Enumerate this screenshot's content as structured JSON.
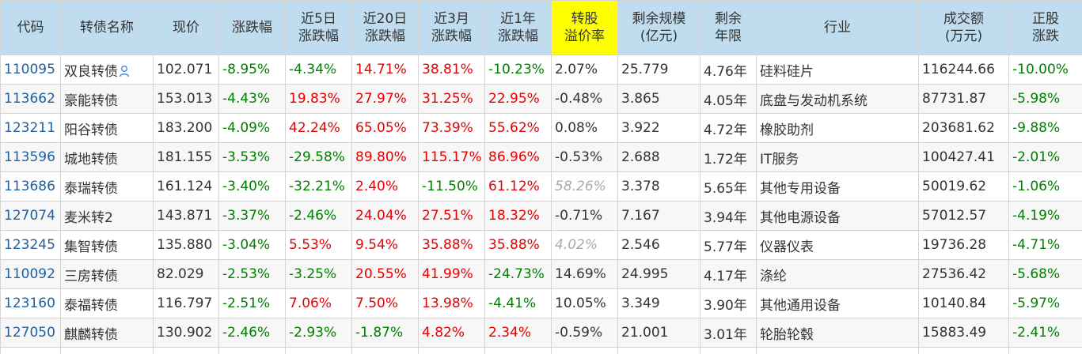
{
  "headers": [
    {
      "l1": "代码",
      "l2": ""
    },
    {
      "l1": "转债名称",
      "l2": ""
    },
    {
      "l1": "现价",
      "l2": ""
    },
    {
      "l1": "涨跌幅",
      "l2": ""
    },
    {
      "l1": "近5日",
      "l2": "涨跌幅"
    },
    {
      "l1": "近20日",
      "l2": "涨跌幅"
    },
    {
      "l1": "近3月",
      "l2": "涨跌幅"
    },
    {
      "l1": "近1年",
      "l2": "涨跌幅"
    },
    {
      "l1": "转股",
      "l2": "溢价率"
    },
    {
      "l1": "剩余规模",
      "l2": "(亿元)"
    },
    {
      "l1": "剩余",
      "l2": "年限"
    },
    {
      "l1": "行业",
      "l2": ""
    },
    {
      "l1": "成交额",
      "l2": "(万元)"
    },
    {
      "l1": "正股",
      "l2": "涨跌"
    }
  ],
  "sort": {
    "column": "涨跌幅",
    "up_icon": "sort-asc-icon",
    "down_icon": "sort-desc-icon"
  },
  "colors": {
    "up": "#e60000",
    "down": "#008000",
    "header_bg": "#c0dcef",
    "highlight": "#ffff00",
    "code": "#1f5f9f"
  },
  "rows": [
    {
      "code": "110095",
      "name": "双良转债",
      "name_icon": "person-icon",
      "price": "102.071",
      "chg": "-8.95%",
      "d5": "-4.34%",
      "d20": "14.71%",
      "m3": "38.81%",
      "y1": "-10.23%",
      "premium": "2.07%",
      "premium_muted": false,
      "scale": "25.779",
      "years": "4.76年",
      "industry": "硅料硅片",
      "turnover": "116244.66",
      "stock_chg": "-10.00%"
    },
    {
      "code": "113662",
      "name": "豪能转债",
      "price": "153.013",
      "chg": "-4.43%",
      "d5": "19.83%",
      "d20": "27.97%",
      "m3": "31.25%",
      "y1": "22.95%",
      "premium": "-0.48%",
      "premium_muted": false,
      "scale": "3.865",
      "years": "4.05年",
      "industry": "底盘与发动机系统",
      "turnover": "87731.87",
      "stock_chg": "-5.98%"
    },
    {
      "code": "123211",
      "name": "阳谷转债",
      "price": "183.200",
      "chg": "-4.09%",
      "d5": "42.24%",
      "d20": "65.05%",
      "m3": "73.39%",
      "y1": "55.62%",
      "premium": "0.08%",
      "premium_muted": false,
      "scale": "3.922",
      "years": "4.72年",
      "industry": "橡胶助剂",
      "turnover": "203681.62",
      "stock_chg": "-9.88%"
    },
    {
      "code": "113596",
      "name": "城地转债",
      "price": "181.155",
      "chg": "-3.53%",
      "d5": "-29.58%",
      "d20": "89.80%",
      "m3": "115.17%",
      "y1": "86.96%",
      "premium": "-0.53%",
      "premium_muted": false,
      "scale": "2.688",
      "years": "1.72年",
      "industry": "IT服务",
      "turnover": "100427.41",
      "stock_chg": "-2.01%"
    },
    {
      "code": "113686",
      "name": "泰瑞转债",
      "price": "161.124",
      "chg": "-3.40%",
      "d5": "-32.21%",
      "d20": "2.40%",
      "m3": "-11.50%",
      "y1": "61.12%",
      "premium": "58.26%",
      "premium_muted": true,
      "scale": "3.378",
      "years": "5.65年",
      "industry": "其他专用设备",
      "turnover": "50019.62",
      "stock_chg": "-1.06%"
    },
    {
      "code": "127074",
      "name": "麦米转2",
      "price": "143.871",
      "chg": "-3.37%",
      "d5": "-2.46%",
      "d20": "24.04%",
      "m3": "27.51%",
      "y1": "18.32%",
      "premium": "-0.71%",
      "premium_muted": false,
      "scale": "7.167",
      "years": "3.94年",
      "industry": "其他电源设备",
      "turnover": "57012.57",
      "stock_chg": "-4.19%"
    },
    {
      "code": "123245",
      "name": "集智转债",
      "price": "135.880",
      "chg": "-3.04%",
      "d5": "5.53%",
      "d20": "9.54%",
      "m3": "35.88%",
      "y1": "35.88%",
      "premium": "4.02%",
      "premium_muted": true,
      "scale": "2.546",
      "years": "5.77年",
      "industry": "仪器仪表",
      "turnover": "19736.28",
      "stock_chg": "-4.71%"
    },
    {
      "code": "110092",
      "name": "三房转债",
      "price": "82.029",
      "chg": "-2.53%",
      "d5": "-3.25%",
      "d20": "20.55%",
      "m3": "41.99%",
      "y1": "-24.73%",
      "premium": "14.69%",
      "premium_muted": false,
      "scale": "24.995",
      "years": "4.17年",
      "industry": "涤纶",
      "turnover": "27536.42",
      "stock_chg": "-5.68%"
    },
    {
      "code": "123160",
      "name": "泰福转债",
      "price": "116.797",
      "chg": "-2.51%",
      "d5": "7.06%",
      "d20": "7.50%",
      "m3": "13.98%",
      "y1": "-4.41%",
      "premium": "10.05%",
      "premium_muted": false,
      "scale": "3.349",
      "years": "3.90年",
      "industry": "其他通用设备",
      "turnover": "10140.84",
      "stock_chg": "-5.97%"
    },
    {
      "code": "127050",
      "name": "麒麟转债",
      "price": "130.902",
      "chg": "-2.46%",
      "d5": "-2.93%",
      "d20": "-1.87%",
      "m3": "4.82%",
      "y1": "2.34%",
      "premium": "-0.59%",
      "premium_muted": false,
      "scale": "21.001",
      "years": "3.01年",
      "industry": "轮胎轮毂",
      "turnover": "15883.49",
      "stock_chg": "-2.41%"
    }
  ]
}
